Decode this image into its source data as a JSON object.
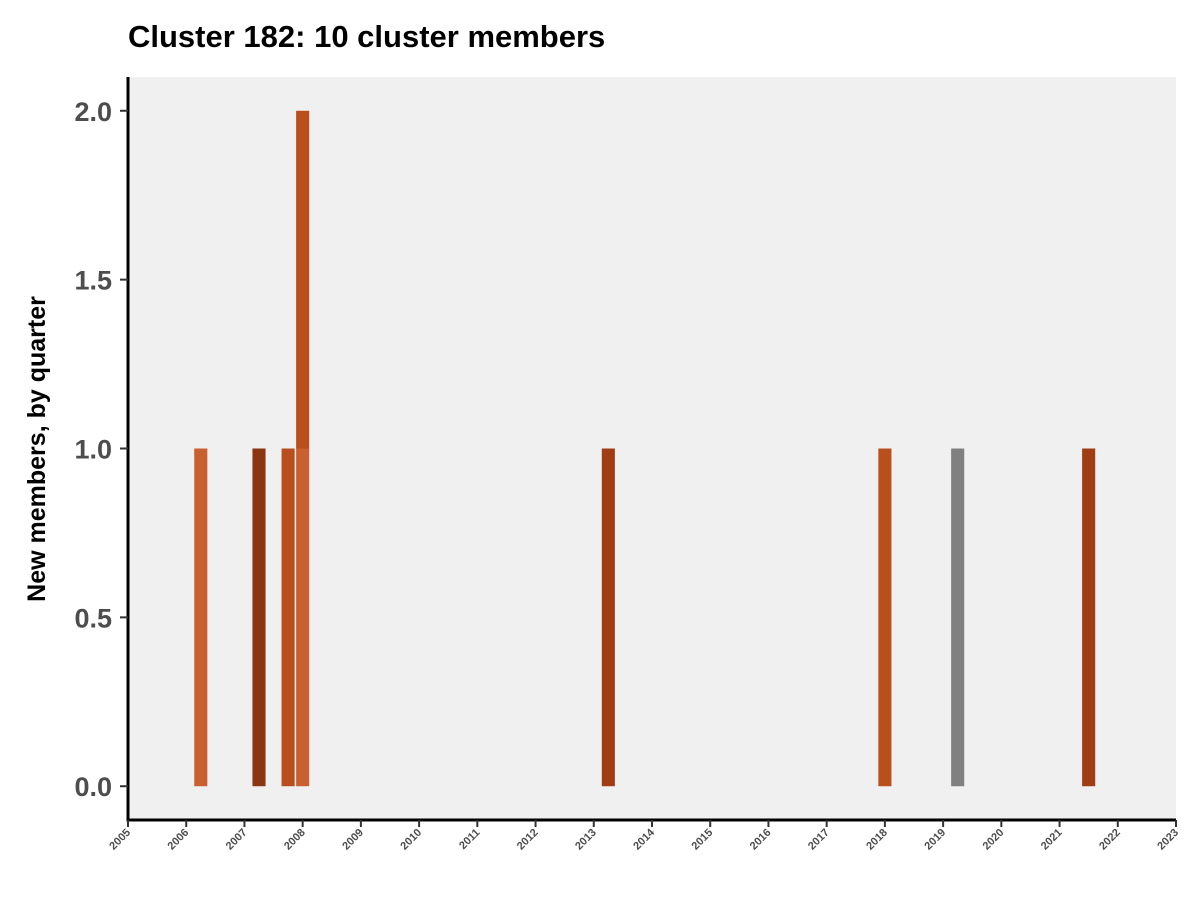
{
  "chart_data": {
    "type": "bar",
    "title": "Cluster 182: 10 cluster members",
    "xlabel": "",
    "ylabel": "New members, by quarter",
    "xlim": [
      2005,
      2023
    ],
    "ylim": [
      -0.1,
      2.1
    ],
    "y_ticks": [
      "0.0",
      "0.5",
      "1.0",
      "1.5",
      "2.0"
    ],
    "x_ticks": [
      "2005",
      "2006",
      "2007",
      "2008",
      "2009",
      "2010",
      "2011",
      "2012",
      "2013",
      "2014",
      "2015",
      "2016",
      "2017",
      "2018",
      "2019",
      "2020",
      "2021",
      "2022",
      "2023"
    ],
    "grid": false,
    "panel_background": "#f0f0f0",
    "stacked": true,
    "bars": [
      {
        "quarter": "2006 Q2",
        "segments": [
          {
            "value": 1,
            "color": "#c8612f"
          }
        ]
      },
      {
        "quarter": "2007 Q2",
        "segments": [
          {
            "value": 1,
            "color": "#8b3612"
          }
        ]
      },
      {
        "quarter": "2007 Q4",
        "segments": [
          {
            "value": 1,
            "color": "#b84f1c"
          }
        ]
      },
      {
        "quarter": "2008 Q1",
        "segments": [
          {
            "value": 1,
            "color": "#c8612f"
          },
          {
            "value": 1,
            "color": "#b84f1c"
          }
        ]
      },
      {
        "quarter": "2013 Q2",
        "segments": [
          {
            "value": 1,
            "color": "#a03d14"
          }
        ]
      },
      {
        "quarter": "2018 Q1",
        "segments": [
          {
            "value": 1,
            "color": "#b84f1c"
          }
        ]
      },
      {
        "quarter": "2019 Q2",
        "segments": [
          {
            "value": 1,
            "color": "#808080"
          }
        ]
      },
      {
        "quarter": "2021 Q3",
        "segments": [
          {
            "value": 1,
            "color": "#a03d14"
          }
        ]
      }
    ]
  }
}
